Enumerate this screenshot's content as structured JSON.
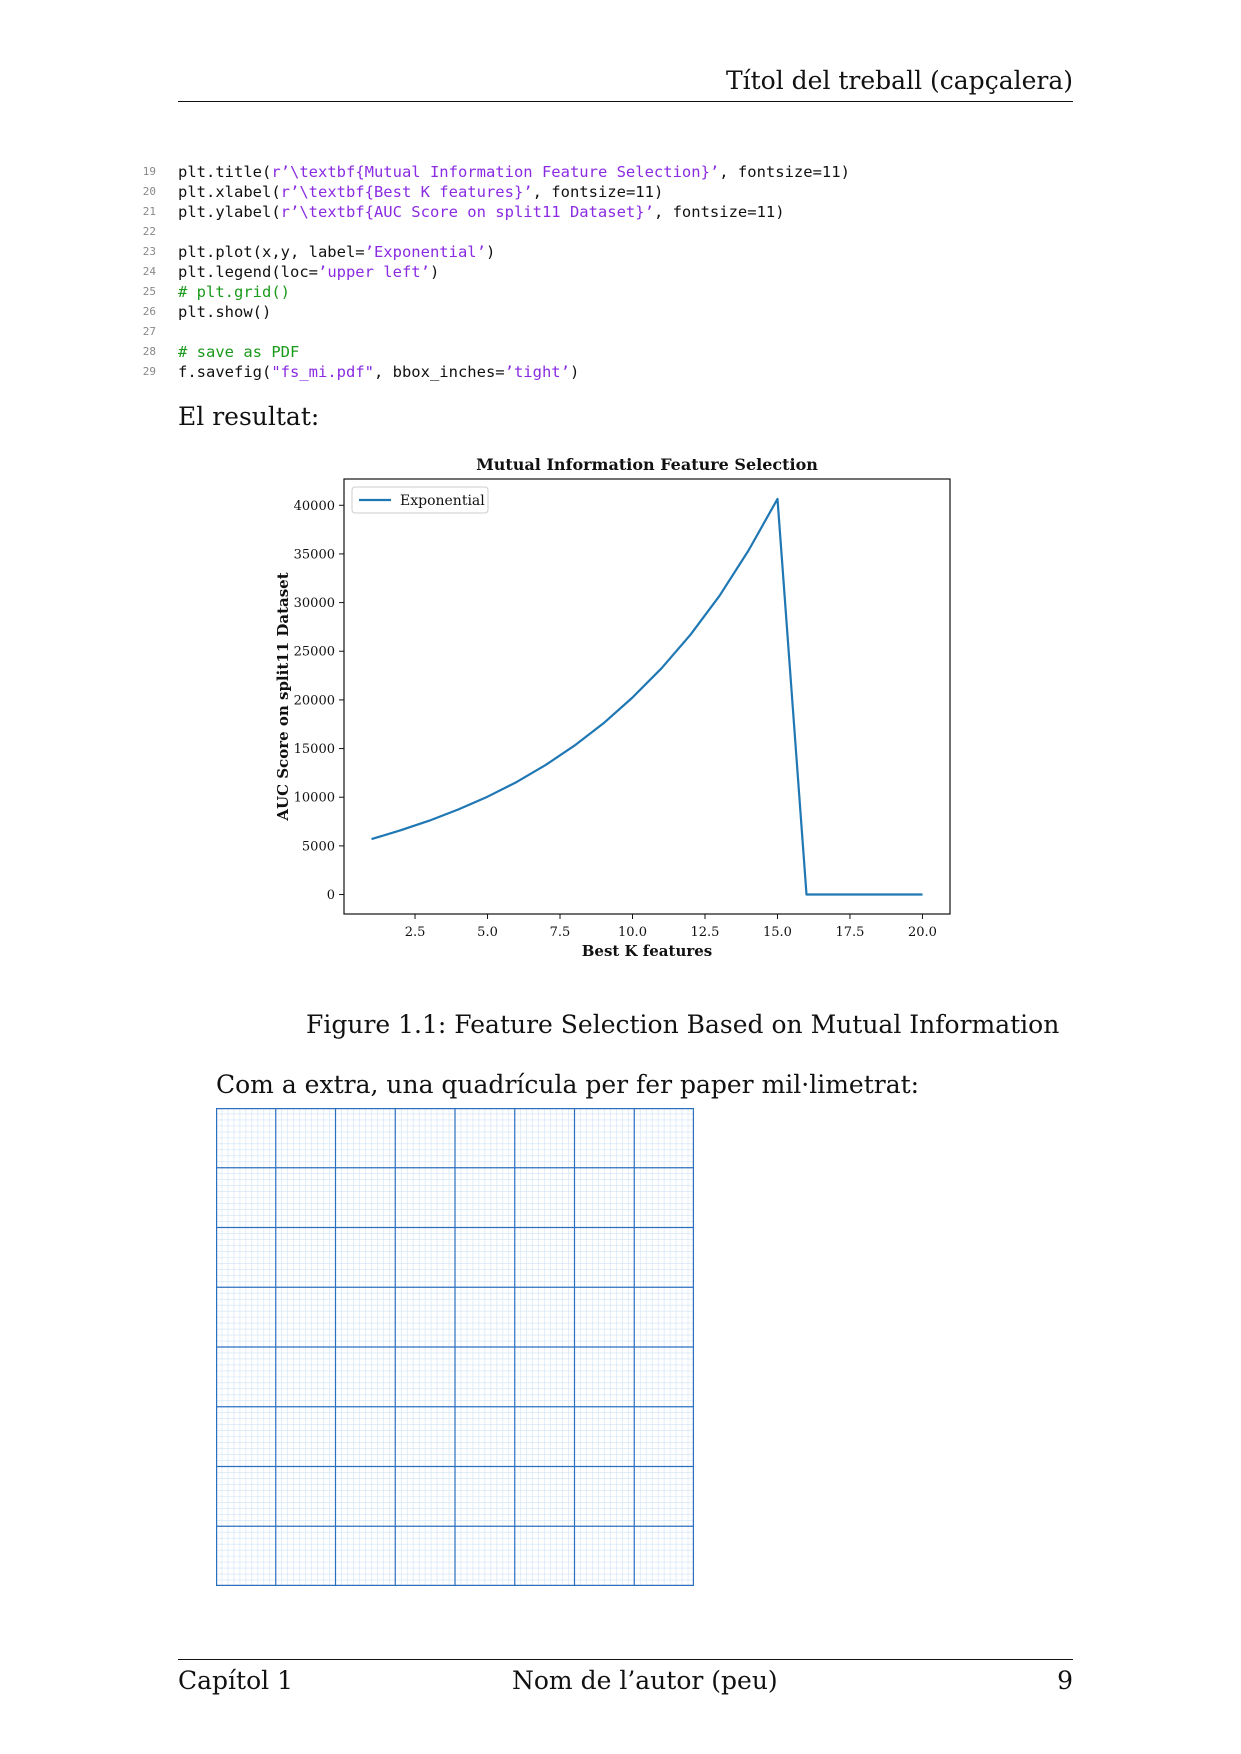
{
  "header": {
    "title": "Títol del treball (capçalera)"
  },
  "code": {
    "lines": [
      {
        "num": "19",
        "segments": [
          {
            "t": "plt.title(",
            "c": ""
          },
          {
            "t": "r’\\textbf{Mutual Information Feature Selection}’",
            "c": "str"
          },
          {
            "t": ", fontsize=11)",
            "c": ""
          }
        ]
      },
      {
        "num": "20",
        "segments": [
          {
            "t": "plt.xlabel(",
            "c": ""
          },
          {
            "t": "r’\\textbf{Best K features}’",
            "c": "str"
          },
          {
            "t": ", fontsize=11)",
            "c": ""
          }
        ]
      },
      {
        "num": "21",
        "segments": [
          {
            "t": "plt.ylabel(",
            "c": ""
          },
          {
            "t": "r’\\textbf{AUC Score on split11 Dataset}’",
            "c": "str"
          },
          {
            "t": ", fontsize=11)",
            "c": ""
          }
        ]
      },
      {
        "num": "22",
        "segments": []
      },
      {
        "num": "23",
        "segments": [
          {
            "t": "plt.plot(x,y, label=",
            "c": ""
          },
          {
            "t": "’Exponential’",
            "c": "str"
          },
          {
            "t": ")",
            "c": ""
          }
        ]
      },
      {
        "num": "24",
        "segments": [
          {
            "t": "plt.legend(loc=",
            "c": ""
          },
          {
            "t": "’upper left’",
            "c": "str"
          },
          {
            "t": ")",
            "c": ""
          }
        ]
      },
      {
        "num": "25",
        "segments": [
          {
            "t": "# plt.grid()",
            "c": "cmt"
          }
        ]
      },
      {
        "num": "26",
        "segments": [
          {
            "t": "plt.show()",
            "c": ""
          }
        ]
      },
      {
        "num": "27",
        "segments": []
      },
      {
        "num": "28",
        "segments": [
          {
            "t": "# save as PDF",
            "c": "cmt"
          }
        ]
      },
      {
        "num": "29",
        "segments": [
          {
            "t": "f.savefig(",
            "c": ""
          },
          {
            "t": "\"fs_mi.pdf\"",
            "c": "str"
          },
          {
            "t": ", bbox_inches=",
            "c": ""
          },
          {
            "t": "’tight’",
            "c": "str"
          },
          {
            "t": ")",
            "c": ""
          }
        ]
      }
    ]
  },
  "result_text": "El resultat:",
  "chart_data": {
    "type": "line",
    "title": "Mutual Information Feature Selection",
    "xlabel": "Best K features",
    "ylabel": "AUC Score on split11 Dataset",
    "xlim": [
      0.05,
      20.95
    ],
    "ylim": [
      -2000,
      42700
    ],
    "xticks": [
      2.5,
      5.0,
      7.5,
      10.0,
      12.5,
      15.0,
      17.5,
      20.0
    ],
    "xtick_labels": [
      "2.5",
      "5.0",
      "7.5",
      "10.0",
      "12.5",
      "15.0",
      "17.5",
      "20.0"
    ],
    "yticks": [
      0,
      5000,
      10000,
      15000,
      20000,
      25000,
      30000,
      35000,
      40000
    ],
    "ytick_labels": [
      "0",
      "5000",
      "10000",
      "15000",
      "20000",
      "25000",
      "30000",
      "35000",
      "40000"
    ],
    "grid": false,
    "legend_position": "upper-left",
    "series": [
      {
        "name": "Exponential",
        "color": "#1f77b4",
        "x": [
          1,
          2,
          3,
          4,
          5,
          6,
          7,
          8,
          9,
          10,
          11,
          12,
          13,
          14,
          15,
          16,
          17,
          18,
          19,
          20
        ],
        "y": [
          5700,
          6600,
          7600,
          8750,
          10050,
          11550,
          13300,
          15300,
          17600,
          20250,
          23250,
          26700,
          30700,
          35350,
          40650,
          0,
          0,
          0,
          0,
          0
        ]
      }
    ]
  },
  "figure_caption": "Figure 1.1: Feature Selection Based on Mutual Information",
  "extra_text": "Com a extra, una quadrícula per fer paper mil·limetrat:",
  "footer": {
    "left": "Capítol 1",
    "center": "Nom de l’autor (peu)",
    "right": "9"
  },
  "colors": {
    "grid_minor": "#cfe3f5",
    "grid_major": "#2a6fc0"
  }
}
